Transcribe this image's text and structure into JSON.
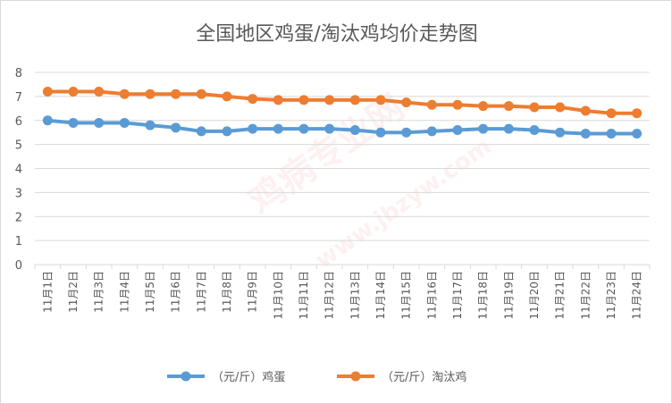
{
  "chart_data": {
    "type": "line",
    "title": "全国地区鸡蛋/淘汰鸡均价走势图",
    "categories": [
      "11月1日",
      "11月2日",
      "11月3日",
      "11月4日",
      "11月5日",
      "11月6日",
      "11月7日",
      "11月8日",
      "11月9日",
      "11月10日",
      "11月11日",
      "11月12日",
      "11月13日",
      "11月14日",
      "11月15日",
      "11月16日",
      "11月17日",
      "11月18日",
      "11月19日",
      "11月20日",
      "11月21日",
      "11月22日",
      "11月23日",
      "11月24日"
    ],
    "series": [
      {
        "name": "（元/斤）鸡蛋",
        "color": "#5b9bd5",
        "values": [
          6.0,
          5.9,
          5.9,
          5.9,
          5.8,
          5.7,
          5.55,
          5.55,
          5.65,
          5.65,
          5.65,
          5.65,
          5.6,
          5.5,
          5.5,
          5.55,
          5.6,
          5.65,
          5.65,
          5.6,
          5.5,
          5.45,
          5.45,
          5.45
        ]
      },
      {
        "name": "（元/斤）淘汰鸡",
        "color": "#ed7d31",
        "values": [
          7.2,
          7.2,
          7.2,
          7.1,
          7.1,
          7.1,
          7.1,
          7.0,
          6.9,
          6.85,
          6.85,
          6.85,
          6.85,
          6.85,
          6.75,
          6.65,
          6.65,
          6.6,
          6.6,
          6.55,
          6.55,
          6.4,
          6.3,
          6.3
        ]
      }
    ],
    "yticks": [
      "0",
      "1",
      "2",
      "3",
      "4",
      "5",
      "6",
      "7",
      "8"
    ],
    "ylim": [
      0,
      8
    ],
    "grid": true,
    "legend": "bottom"
  },
  "watermark": {
    "text": "鸡病专业网",
    "url": "www.jbzyw.com"
  }
}
